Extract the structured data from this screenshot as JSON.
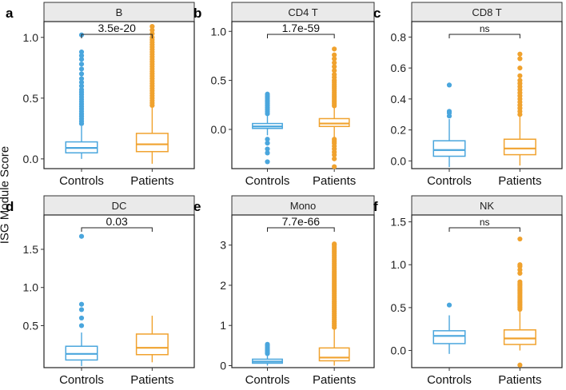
{
  "y_axis_title": "ISG Module Score",
  "colors": {
    "controls": "#4aa6dd",
    "patients": "#f0a22e",
    "strip": "#eaeaea"
  },
  "chart_data": [
    {
      "type": "box",
      "letter": "a",
      "title": "B",
      "categories": [
        "Controls",
        "Patients"
      ],
      "ylim": [
        -0.08,
        1.13
      ],
      "yticks": [
        0.0,
        0.5,
        1.0
      ],
      "ytick_labels": [
        "0.0",
        "0.5",
        "1.0"
      ],
      "pvalue": "3.5e-20",
      "boxes": [
        {
          "group": "Controls",
          "whisker_low": 0.0,
          "q1": 0.05,
          "median": 0.09,
          "q3": 0.14,
          "whisker_high": 0.27,
          "outliers": [
            0.29,
            0.31,
            0.33,
            0.35,
            0.37,
            0.39,
            0.41,
            0.43,
            0.45,
            0.47,
            0.49,
            0.51,
            0.53,
            0.55,
            0.57,
            0.6,
            0.63,
            0.66,
            0.7,
            0.74,
            0.78,
            0.82,
            0.85,
            0.88,
            1.02
          ]
        },
        {
          "group": "Patients",
          "whisker_low": -0.04,
          "q1": 0.06,
          "median": 0.12,
          "q3": 0.21,
          "whisker_high": 0.42,
          "outliers": [
            0.44,
            0.46,
            0.48,
            0.5,
            0.52,
            0.54,
            0.56,
            0.58,
            0.6,
            0.62,
            0.64,
            0.66,
            0.68,
            0.7,
            0.72,
            0.74,
            0.76,
            0.78,
            0.8,
            0.82,
            0.84,
            0.86,
            0.88,
            0.9,
            0.92,
            0.94,
            0.96,
            0.98,
            1.0,
            1.03,
            1.06,
            1.09
          ]
        }
      ]
    },
    {
      "type": "box",
      "letter": "b",
      "title": "CD4 T",
      "categories": [
        "Controls",
        "Patients"
      ],
      "ylim": [
        -0.4,
        1.1
      ],
      "yticks": [
        0.0,
        0.5,
        1.0
      ],
      "ytick_labels": [
        "0.0",
        "0.5",
        "1.0"
      ],
      "pvalue": "1.7e-59",
      "boxes": [
        {
          "group": "Controls",
          "whisker_low": -0.06,
          "q1": 0.01,
          "median": 0.03,
          "q3": 0.06,
          "whisker_high": 0.14,
          "outliers": [
            0.16,
            0.18,
            0.2,
            0.22,
            0.24,
            0.26,
            0.28,
            0.3,
            0.32,
            0.34,
            0.36,
            -0.1,
            -0.14,
            -0.2,
            -0.24,
            -0.33
          ]
        },
        {
          "group": "Patients",
          "whisker_low": -0.08,
          "q1": 0.03,
          "median": 0.06,
          "q3": 0.11,
          "whisker_high": 0.22,
          "outliers": [
            0.24,
            0.26,
            0.28,
            0.3,
            0.32,
            0.34,
            0.36,
            0.38,
            0.4,
            0.42,
            0.44,
            0.46,
            0.48,
            0.5,
            0.53,
            0.56,
            0.6,
            0.64,
            0.68,
            0.72,
            0.76,
            0.82,
            -0.1,
            -0.12,
            -0.14,
            -0.17,
            -0.2,
            -0.23,
            -0.26,
            -0.3,
            -0.38
          ]
        }
      ]
    },
    {
      "type": "box",
      "letter": "c",
      "title": "CD8 T",
      "categories": [
        "Controls",
        "Patients"
      ],
      "ylim": [
        -0.05,
        0.9
      ],
      "yticks": [
        0.0,
        0.2,
        0.4,
        0.6,
        0.8
      ],
      "ytick_labels": [
        "0.0",
        "0.2",
        "0.4",
        "0.6",
        "0.8"
      ],
      "pvalue": "ns",
      "boxes": [
        {
          "group": "Controls",
          "whisker_low": -0.04,
          "q1": 0.03,
          "median": 0.07,
          "q3": 0.13,
          "whisker_high": 0.27,
          "outliers": [
            0.29,
            0.31,
            0.32,
            0.49
          ]
        },
        {
          "group": "Patients",
          "whisker_low": -0.03,
          "q1": 0.04,
          "median": 0.08,
          "q3": 0.14,
          "whisker_high": 0.29,
          "outliers": [
            0.3,
            0.32,
            0.34,
            0.36,
            0.38,
            0.4,
            0.42,
            0.44,
            0.46,
            0.48,
            0.5,
            0.52,
            0.55,
            0.6,
            0.66,
            0.69
          ]
        }
      ]
    },
    {
      "type": "box",
      "letter": "d",
      "title": "DC",
      "categories": [
        "Controls",
        "Patients"
      ],
      "ylim": [
        -0.05,
        1.95
      ],
      "yticks": [
        0.5,
        1.0,
        1.5
      ],
      "ytick_labels": [
        "0.5",
        "1.0",
        "1.5"
      ],
      "pvalue": "0.03",
      "boxes": [
        {
          "group": "Controls",
          "whisker_low": -0.03,
          "q1": 0.05,
          "median": 0.13,
          "q3": 0.23,
          "whisker_high": 0.41,
          "outliers": [
            0.5,
            0.6,
            0.71,
            0.78,
            1.67
          ]
        },
        {
          "group": "Patients",
          "whisker_low": 0.02,
          "q1": 0.12,
          "median": 0.21,
          "q3": 0.39,
          "whisker_high": 0.63,
          "outliers": []
        }
      ]
    },
    {
      "type": "box",
      "letter": "e",
      "title": "Mono",
      "categories": [
        "Controls",
        "Patients"
      ],
      "ylim": [
        -0.05,
        3.75
      ],
      "yticks": [
        0,
        1,
        2,
        3
      ],
      "ytick_labels": [
        "0",
        "1",
        "2",
        "3"
      ],
      "pvalue": "7.7e-66",
      "boxes": [
        {
          "group": "Controls",
          "whisker_low": 0.0,
          "q1": 0.06,
          "median": 0.1,
          "q3": 0.16,
          "whisker_high": 0.28,
          "outliers": [
            0.3,
            0.34,
            0.38,
            0.42,
            0.46,
            0.5,
            0.53
          ]
        },
        {
          "group": "Patients",
          "whisker_low": 0.0,
          "q1": 0.12,
          "median": 0.2,
          "q3": 0.44,
          "whisker_high": 0.92,
          "outliers": [
            0.95,
            1.0,
            1.05,
            1.1,
            1.15,
            1.2,
            1.25,
            1.3,
            1.35,
            1.4,
            1.45,
            1.5,
            1.55,
            1.6,
            1.65,
            1.7,
            1.75,
            1.8,
            1.85,
            1.9,
            1.95,
            2.0,
            2.05,
            2.1,
            2.15,
            2.2,
            2.25,
            2.3,
            2.35,
            2.4,
            2.45,
            2.5,
            2.55,
            2.6,
            2.65,
            2.7,
            2.75,
            2.8,
            2.85,
            2.9,
            2.95,
            3.0,
            3.03
          ]
        }
      ]
    },
    {
      "type": "box",
      "letter": "f",
      "title": "NK",
      "categories": [
        "Controls",
        "Patients"
      ],
      "ylim": [
        -0.2,
        1.58
      ],
      "yticks": [
        0.0,
        0.5,
        1.0,
        1.5
      ],
      "ytick_labels": [
        "0.0",
        "0.5",
        "1.0",
        "1.5"
      ],
      "pvalue": "ns",
      "boxes": [
        {
          "group": "Controls",
          "whisker_low": -0.04,
          "q1": 0.08,
          "median": 0.17,
          "q3": 0.23,
          "whisker_high": 0.41,
          "outliers": [
            0.53
          ]
        },
        {
          "group": "Patients",
          "whisker_low": 0.0,
          "q1": 0.07,
          "median": 0.14,
          "q3": 0.24,
          "whisker_high": 0.46,
          "outliers": [
            0.48,
            0.5,
            0.52,
            0.54,
            0.56,
            0.58,
            0.6,
            0.62,
            0.64,
            0.66,
            0.68,
            0.7,
            0.72,
            0.74,
            0.76,
            0.78,
            0.8,
            0.9,
            0.94,
            0.98,
            1.0,
            1.3,
            -0.17
          ]
        }
      ]
    }
  ]
}
